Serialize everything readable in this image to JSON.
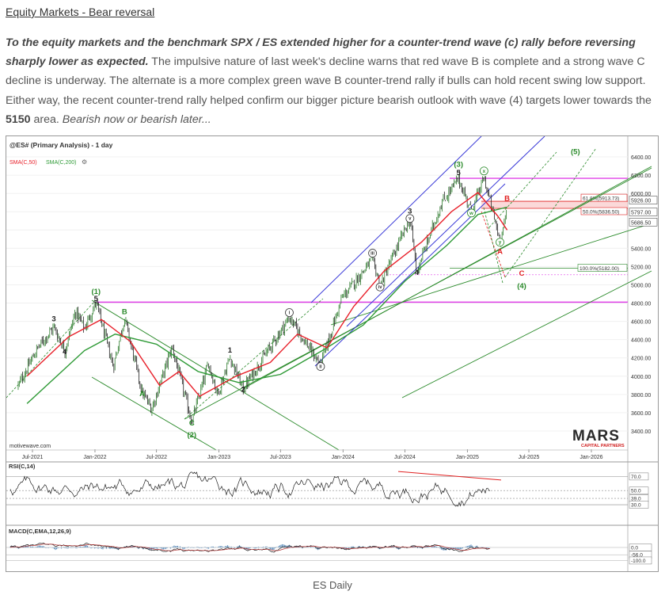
{
  "article": {
    "title": "Equity Markets - Bear reversal",
    "lead_bold": "To the equity markets and the benchmark SPX / ES extended higher for a counter-trend wave (c) rally before reversing sharply lower as expected.",
    "lead_text_1": " The impulsive nature of last week's decline warns that red wave B is complete and a strong wave C decline is underway. The alternate is a more complex green wave B counter-trend rally if bulls can hold recent swing low support. Either way, the recent counter-trend rally helped confirm our bigger picture bearish outlook with wave (4) targets lower towards the ",
    "lead_number": "5150",
    "lead_text_2": " area. ",
    "lead_italic": "Bearish now or bearish later...",
    "caption": "ES Daily"
  },
  "chart_header": {
    "symbol": "@ES# (Primary Analysis) - 1 day",
    "sma50": "SMA(C,50)",
    "sma200": "SMA(C,200)",
    "watermark": "motivewave.com",
    "brand_main": "MARS",
    "brand_sub": "CAPITAL PARTNERS"
  },
  "colors": {
    "sma50": "#e8202a",
    "sma200": "#2e9a36",
    "magenta": "#e040e8",
    "channel_blue": "#3a3ad8",
    "wave_green": "#2a8a2a",
    "wave_red": "#e02020",
    "macd_hist": "#5a8ab8"
  },
  "chart_data": [
    {
      "type": "line",
      "subtype": "candlestick",
      "x_ticks": [
        "Jul-2021",
        "Jan-2022",
        "Jul-2022",
        "Jan-2023",
        "Jul-2023",
        "Jan-2024",
        "Jul-2024",
        "Jan-2025",
        "Jul-2025",
        "Jan-2026"
      ],
      "y_ticks": [
        3400,
        3600,
        3800,
        4000,
        4200,
        4400,
        4600,
        4800,
        5000,
        5200,
        5400,
        5600,
        5800,
        6000,
        6200,
        6400
      ],
      "ylim": [
        3200,
        6520
      ],
      "price_path": [
        {
          "x": "2021-05-20",
          "y": 3900
        },
        {
          "x": "2021-07-15",
          "y": 4300
        },
        {
          "x": "2021-09-02",
          "y": 4540
        },
        {
          "x": "2021-10-04",
          "y": 4280
        },
        {
          "x": "2021-11-05",
          "y": 4710
        },
        {
          "x": "2021-12-01",
          "y": 4520
        },
        {
          "x": "2022-01-04",
          "y": 4810
        },
        {
          "x": "2022-02-24",
          "y": 4100
        },
        {
          "x": "2022-03-29",
          "y": 4640
        },
        {
          "x": "2022-05-20",
          "y": 3820
        },
        {
          "x": "2022-06-17",
          "y": 3640
        },
        {
          "x": "2022-08-16",
          "y": 4320
        },
        {
          "x": "2022-10-13",
          "y": 3500
        },
        {
          "x": "2022-12-01",
          "y": 4140
        },
        {
          "x": "2022-12-28",
          "y": 3800
        },
        {
          "x": "2023-02-02",
          "y": 4210
        },
        {
          "x": "2023-03-13",
          "y": 3860
        },
        {
          "x": "2023-07-27",
          "y": 4640
        },
        {
          "x": "2023-10-27",
          "y": 4120
        },
        {
          "x": "2023-12-28",
          "y": 4850
        },
        {
          "x": "2024-03-28",
          "y": 5280
        },
        {
          "x": "2024-04-19",
          "y": 4990
        },
        {
          "x": "2024-07-16",
          "y": 5730
        },
        {
          "x": "2024-08-05",
          "y": 5150
        },
        {
          "x": "2024-10-18",
          "y": 5900
        },
        {
          "x": "2024-12-06",
          "y": 6160
        },
        {
          "x": "2025-01-13",
          "y": 5800
        },
        {
          "x": "2025-02-19",
          "y": 6170
        },
        {
          "x": "2025-04-07",
          "y": 5480
        },
        {
          "x": "2025-04-28",
          "y": 5800
        }
      ],
      "sma50_path": [
        {
          "x": "2021-06-15",
          "y": 4000
        },
        {
          "x": "2021-10-15",
          "y": 4430
        },
        {
          "x": "2022-01-20",
          "y": 4620
        },
        {
          "x": "2022-04-15",
          "y": 4380
        },
        {
          "x": "2022-07-10",
          "y": 3900
        },
        {
          "x": "2022-09-05",
          "y": 4050
        },
        {
          "x": "2022-11-05",
          "y": 3780
        },
        {
          "x": "2023-02-20",
          "y": 4000
        },
        {
          "x": "2023-06-01",
          "y": 4150
        },
        {
          "x": "2023-08-20",
          "y": 4460
        },
        {
          "x": "2023-11-15",
          "y": 4310
        },
        {
          "x": "2024-02-01",
          "y": 4760
        },
        {
          "x": "2024-05-01",
          "y": 5150
        },
        {
          "x": "2024-08-20",
          "y": 5470
        },
        {
          "x": "2024-11-15",
          "y": 5800
        },
        {
          "x": "2025-02-01",
          "y": 6010
        },
        {
          "x": "2025-04-01",
          "y": 5750
        },
        {
          "x": "2025-04-28",
          "y": 5600
        }
      ],
      "sma200_path": [
        {
          "x": "2021-06-15",
          "y": 3700
        },
        {
          "x": "2021-12-01",
          "y": 4280
        },
        {
          "x": "2022-03-01",
          "y": 4460
        },
        {
          "x": "2022-07-01",
          "y": 4350
        },
        {
          "x": "2022-11-01",
          "y": 4050
        },
        {
          "x": "2023-03-01",
          "y": 3930
        },
        {
          "x": "2023-07-01",
          "y": 4020
        },
        {
          "x": "2023-11-01",
          "y": 4280
        },
        {
          "x": "2024-03-01",
          "y": 4560
        },
        {
          "x": "2024-07-01",
          "y": 5040
        },
        {
          "x": "2024-11-01",
          "y": 5430
        },
        {
          "x": "2025-02-01",
          "y": 5770
        },
        {
          "x": "2025-04-28",
          "y": 5850
        }
      ],
      "price_labels": [
        {
          "text": "6400.00",
          "y": 6400
        },
        {
          "text": "6200.00",
          "y": 6200
        },
        {
          "text": "6000.00",
          "y": 6000
        },
        {
          "text": "5926.00",
          "y": 5926
        },
        {
          "text": "5797.00",
          "y": 5797
        },
        {
          "text": "5686.50",
          "y": 5686.5
        },
        {
          "text": "5400.00",
          "y": 5400
        },
        {
          "text": "5200.00",
          "y": 5200
        },
        {
          "text": "5000.00",
          "y": 5000
        },
        {
          "text": "4800.00",
          "y": 4800
        },
        {
          "text": "4600.00",
          "y": 4600
        },
        {
          "text": "4400.00",
          "y": 4400
        },
        {
          "text": "4200.00",
          "y": 4200
        },
        {
          "text": "4000.00",
          "y": 4000
        },
        {
          "text": "3800.00",
          "y": 3800
        },
        {
          "text": "3600.00",
          "y": 3600
        },
        {
          "text": "3400.00",
          "y": 3400
        }
      ],
      "fib_levels": [
        {
          "label": "61.8%(5913.73)",
          "y": 5913.73
        },
        {
          "label": "50.0%(5836.50)",
          "y": 5836.5
        },
        {
          "label": "100.0%(5182.00)",
          "y": 5182
        }
      ],
      "horizontal_levels": [
        {
          "name": "magenta-top",
          "y": 6165,
          "color": "#e040e8"
        },
        {
          "name": "magenta-mid",
          "y": 4810,
          "color": "#e040e8"
        }
      ],
      "wave_labels": [
        {
          "text": "(1)",
          "color": "green",
          "x": "2022-01-04",
          "y": 4900
        },
        {
          "text": "5",
          "color": "black",
          "x": "2022-01-04",
          "y": 4820
        },
        {
          "text": "3",
          "color": "black",
          "x": "2021-09-02",
          "y": 4600
        },
        {
          "text": "4",
          "color": "black",
          "x": "2021-10-04",
          "y": 4240
        },
        {
          "text": "B",
          "color": "green",
          "x": "2022-03-29",
          "y": 4680
        },
        {
          "text": "A",
          "color": "green",
          "x": "2022-05-20",
          "y": 3780
        },
        {
          "text": "C",
          "color": "green",
          "x": "2022-10-13",
          "y": 3460
        },
        {
          "text": "(2)",
          "color": "green",
          "x": "2022-10-13",
          "y": 3330
        },
        {
          "text": "1",
          "color": "black",
          "x": "2023-02-02",
          "y": 4260
        },
        {
          "text": "2",
          "color": "black",
          "x": "2023-03-13",
          "y": 3830
        },
        {
          "text": "i",
          "color": "circle",
          "x": "2023-07-27",
          "y": 4670
        },
        {
          "text": "ii",
          "color": "circle",
          "x": "2023-10-27",
          "y": 4080
        },
        {
          "text": "iii",
          "color": "circle",
          "x": "2024-03-28",
          "y": 5320
        },
        {
          "text": "iv",
          "color": "circle",
          "x": "2024-04-19",
          "y": 4950
        },
        {
          "text": "3",
          "color": "black",
          "x": "2024-07-16",
          "y": 5780
        },
        {
          "text": "v",
          "color": "circle",
          "x": "2024-07-16",
          "y": 5700
        },
        {
          "text": "4",
          "color": "black",
          "x": "2024-08-05",
          "y": 5110
        },
        {
          "text": "(3)",
          "color": "green",
          "x": "2024-12-06",
          "y": 6290
        },
        {
          "text": "5",
          "color": "black",
          "x": "2024-12-06",
          "y": 6200
        },
        {
          "text": "x",
          "color": "green-circle",
          "x": "2025-02-19",
          "y": 6220
        },
        {
          "text": "w",
          "color": "green-circle",
          "x": "2025-01-13",
          "y": 5760
        },
        {
          "text": "y",
          "color": "green-circle",
          "x": "2025-04-07",
          "y": 5440
        },
        {
          "text": "B",
          "color": "red",
          "x": "2025-04-28",
          "y": 5920
        },
        {
          "text": "A",
          "color": "red",
          "x": "2025-04-07",
          "y": 5340
        },
        {
          "text": "C",
          "color": "red",
          "x": "2025-06-10",
          "y": 5100
        },
        {
          "text": "(4)",
          "color": "green",
          "x": "2025-06-10",
          "y": 4960
        },
        {
          "text": "(5)",
          "color": "green",
          "x": "2025-11-15",
          "y": 6430
        }
      ]
    },
    {
      "type": "line",
      "name": "RSI(C,14)",
      "levels": [
        70.0,
        50.0,
        39.0,
        30.0
      ],
      "level_labels": [
        "70.0",
        "50.0",
        "39.0",
        "30.0"
      ],
      "ylim": [
        20,
        85
      ]
    },
    {
      "type": "bar",
      "name": "MACD(C,EMA,12,26,9)",
      "levels": [
        0.0,
        -56.0,
        -100.0
      ],
      "level_labels": [
        "0.0",
        "-56.0",
        "-100.0"
      ],
      "ylim": [
        -140,
        140
      ]
    }
  ]
}
